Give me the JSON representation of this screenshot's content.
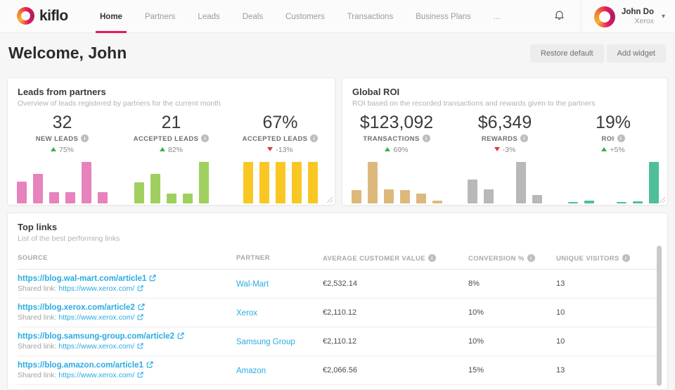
{
  "nav": {
    "logo_text": "kiflo",
    "items": [
      {
        "key": "home",
        "label": "Home",
        "active": true
      },
      {
        "key": "partners",
        "label": "Partners"
      },
      {
        "key": "leads",
        "label": "Leads"
      },
      {
        "key": "deals",
        "label": "Deals"
      },
      {
        "key": "customers",
        "label": "Customers"
      },
      {
        "key": "transactions",
        "label": "Transactions"
      },
      {
        "key": "business-plans",
        "label": "Business Plans"
      },
      {
        "key": "more",
        "label": "..."
      }
    ],
    "user": {
      "name": "John Do",
      "company": "Xerox"
    }
  },
  "header": {
    "title": "Welcome, John",
    "restore_label": "Restore default",
    "add_widget_label": "Add widget"
  },
  "cards": {
    "leads": {
      "title": "Leads from partners",
      "subtitle": "Overview of leads registered by partners for the current month",
      "stats": [
        {
          "value": "32",
          "label": "NEW LEADS",
          "delta": "75%",
          "trend": "up"
        },
        {
          "value": "21",
          "label": "ACCEPTED LEADS",
          "delta": "82%",
          "trend": "up"
        },
        {
          "value": "67%",
          "label": "ACCEPTED LEADS",
          "delta": "-13%",
          "trend": "down"
        }
      ]
    },
    "roi": {
      "title": "Global ROI",
      "subtitle": "ROI based on the recorded transactions and rewards given to the partners",
      "stats": [
        {
          "value": "$123,092",
          "label": "TRANSACTIONS",
          "delta": "69%",
          "trend": "up"
        },
        {
          "value": "$6,349",
          "label": "REWARDS",
          "delta": "-3%",
          "trend": "down"
        },
        {
          "value": "19%",
          "label": "ROI",
          "delta": "+5%",
          "trend": "up"
        }
      ]
    }
  },
  "chart_data": [
    {
      "type": "bar",
      "name": "new-leads-trend",
      "color": "#e683bd",
      "values_relative": [
        0.5,
        0.67,
        0.25,
        0.25,
        0.95,
        0.25
      ]
    },
    {
      "type": "bar",
      "name": "accepted-leads-trend",
      "color": "#9fd05f",
      "values_relative": [
        0.48,
        0.67,
        0.22,
        0.22,
        0.95
      ]
    },
    {
      "type": "bar",
      "name": "accepted-rate-trend",
      "color": "#f8c723",
      "values_relative": [
        0.95,
        0.95,
        0.95,
        0.95,
        0.95
      ]
    },
    {
      "type": "bar",
      "name": "transactions-trend",
      "color": "#ddb87d",
      "values_relative": [
        0.3,
        0.95,
        0.32,
        0.3,
        0.22,
        0.06
      ]
    },
    {
      "type": "bar",
      "name": "rewards-trend",
      "color": "#b8b8b8",
      "values_relative": [
        0.55,
        0.33,
        0,
        0.95,
        0.2
      ]
    },
    {
      "type": "bar",
      "name": "roi-trend",
      "color": "#4ebf97",
      "values_relative": [
        0.04,
        0.07,
        0,
        0.04,
        0.05,
        0.95
      ]
    }
  ],
  "table": {
    "title": "Top links",
    "subtitle": "List of the best performing links",
    "columns": [
      "SOURCE",
      "PARTNER",
      "AVERAGE CUSTOMER VALUE",
      "CONVERSION %",
      "UNIQUE VISITORS"
    ],
    "shared_prefix": "Shared link:",
    "rows": [
      {
        "source": "https://blog.wal-mart.com/article1",
        "shared_link": "https://www.xerox.com/",
        "partner": "Wal-Mart",
        "value": "€2,532.14",
        "conversion": "8%",
        "visitors": "13"
      },
      {
        "source": "https://blog.xerox.com/article2",
        "shared_link": "https://www.xerox.com/",
        "partner": "Xerox",
        "value": "€2,110.12",
        "conversion": "10%",
        "visitors": "10"
      },
      {
        "source": "https://blog.samsung-group.com/article2",
        "shared_link": "https://www.xerox.com/",
        "partner": "Samsung Group",
        "value": "€2,110.12",
        "conversion": "10%",
        "visitors": "10"
      },
      {
        "source": "https://blog.amazon.com/article1",
        "shared_link": "https://www.xerox.com/",
        "partner": "Amazon",
        "value": "€2,066.56",
        "conversion": "15%",
        "visitors": "13"
      }
    ]
  },
  "colors": {
    "accent_pink": "#e8185d",
    "link_blue": "#29abe2",
    "trend_up_green": "#3daf4c",
    "trend_down_red": "#e23b3b"
  }
}
